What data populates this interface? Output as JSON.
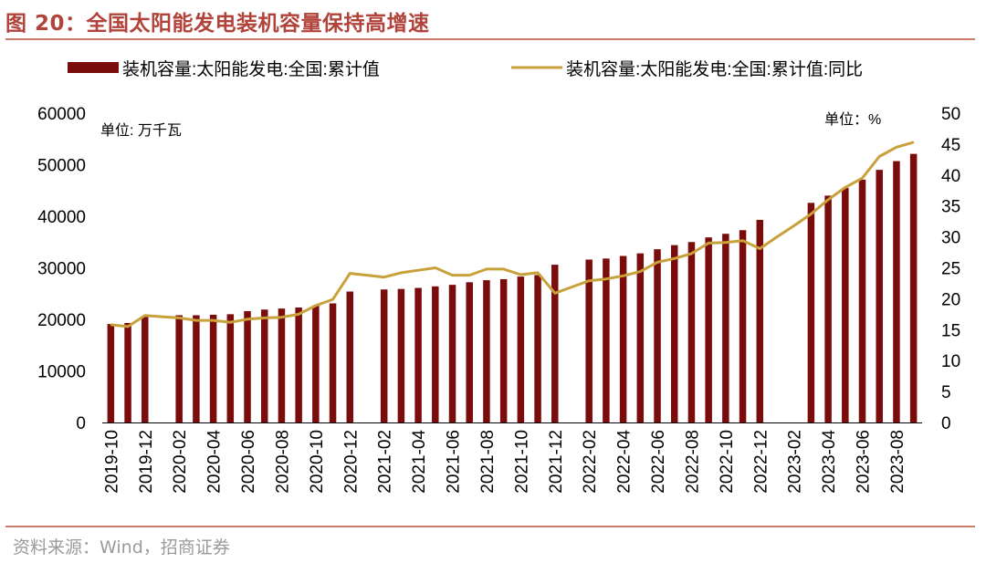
{
  "title": {
    "prefix": "图 ",
    "number": "20",
    "colon": "：",
    "text": "全国太阳能发电装机容量保持高增速"
  },
  "source": "资料来源：Wind，招商证券",
  "colors": {
    "title": "#b1433b",
    "bar": "#7a0c0c",
    "line": "#c9a13b",
    "rule": "#c97c68",
    "text": "#000000",
    "source": "#9a9a9a"
  },
  "chart_data": {
    "type": "bar",
    "unit_left": "单位: 万千瓦",
    "unit_right": "单位：%",
    "legend_position": "top",
    "grid": false,
    "y_left": {
      "min": 0,
      "max": 60000,
      "ticks": [
        "0",
        "10000",
        "20000",
        "30000",
        "40000",
        "50000",
        "60000"
      ]
    },
    "y_right": {
      "min": 0,
      "max": 50,
      "ticks": [
        "0",
        "5",
        "10",
        "15",
        "20",
        "25",
        "30",
        "35",
        "40",
        "45",
        "50"
      ]
    },
    "categories": [
      "2019-10",
      "2019-11",
      "2019-12",
      "2020-01",
      "2020-02",
      "2020-03",
      "2020-04",
      "2020-05",
      "2020-06",
      "2020-07",
      "2020-08",
      "2020-09",
      "2020-10",
      "2020-11",
      "2020-12",
      "2021-01",
      "2021-02",
      "2021-03",
      "2021-04",
      "2021-05",
      "2021-06",
      "2021-07",
      "2021-08",
      "2021-09",
      "2021-10",
      "2021-11",
      "2021-12",
      "2022-01",
      "2022-02",
      "2022-03",
      "2022-04",
      "2022-05",
      "2022-06",
      "2022-07",
      "2022-08",
      "2022-09",
      "2022-10",
      "2022-11",
      "2022-12",
      "2023-01",
      "2023-02",
      "2023-03",
      "2023-04",
      "2023-05",
      "2023-06",
      "2023-07",
      "2023-08",
      "2023-09"
    ],
    "tick_labels": [
      "2019-10",
      "2019-12",
      "2020-02",
      "2020-04",
      "2020-06",
      "2020-08",
      "2020-10",
      "2020-12",
      "2021-02",
      "2021-04",
      "2021-06",
      "2021-08",
      "2021-10",
      "2021-12",
      "2022-02",
      "2022-04",
      "2022-06",
      "2022-08",
      "2022-10",
      "2022-12",
      "2023-02",
      "2023-04",
      "2023-06",
      "2023-08"
    ],
    "series": [
      {
        "name": "装机容量:太阳能发电:全国:累计值",
        "kind": "bar",
        "axis": "left",
        "values": [
          19100,
          19300,
          20500,
          null,
          20800,
          20800,
          20900,
          21000,
          21600,
          21900,
          22100,
          22300,
          22700,
          23100,
          25400,
          null,
          25800,
          25900,
          26100,
          26400,
          26700,
          27200,
          27600,
          27800,
          28300,
          28600,
          30600,
          null,
          31600,
          31800,
          32300,
          32800,
          33600,
          34400,
          35000,
          35900,
          36600,
          37300,
          39300,
          null,
          null,
          42600,
          44000,
          45500,
          47100,
          49000,
          50700,
          52100
        ]
      },
      {
        "name": "装机容量:太阳能发电:全国:累计值:同比",
        "kind": "line",
        "axis": "right",
        "values": [
          15.8,
          15.5,
          17.3,
          17.1,
          16.9,
          16.5,
          16.5,
          16.2,
          16.7,
          16.9,
          17.0,
          17.5,
          18.9,
          19.9,
          24.1,
          23.8,
          23.5,
          24.2,
          24.6,
          25.0,
          23.8,
          23.8,
          24.8,
          24.8,
          23.9,
          24.2,
          20.9,
          21.9,
          22.9,
          23.2,
          23.7,
          24.4,
          25.9,
          26.5,
          27.3,
          29.0,
          29.1,
          29.4,
          28.1,
          30.0,
          31.8,
          33.7,
          36.0,
          38.0,
          39.5,
          43.0,
          44.5,
          45.3
        ]
      }
    ]
  }
}
